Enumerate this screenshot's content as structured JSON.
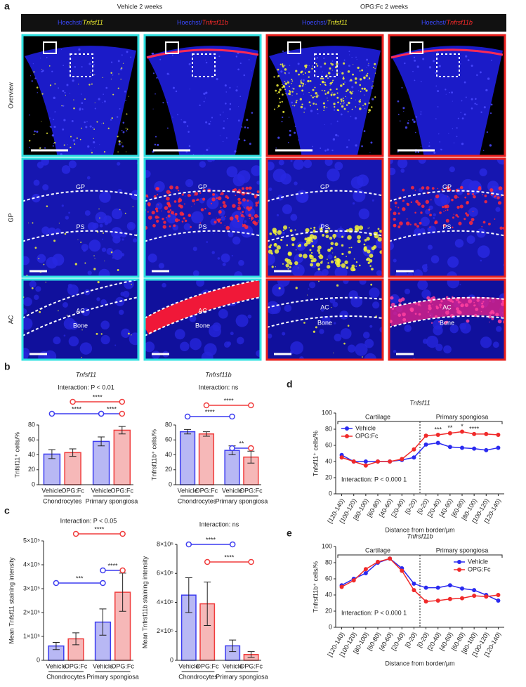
{
  "panel_labels": [
    "a",
    "b",
    "c",
    "d",
    "e"
  ],
  "panel_a": {
    "conditions": [
      "Vehicle 2 weeks",
      "OPG:Fc 2 weeks"
    ],
    "stains": [
      {
        "dye": "Hoechst/",
        "gene": "Tnfsf11"
      },
      {
        "dye": "Hoechst/",
        "gene": "Tnfrsf11b"
      },
      {
        "dye": "Hoechst/",
        "gene": "Tnfsf11"
      },
      {
        "dye": "Hoechst/",
        "gene": "Tnfrsf11b"
      }
    ],
    "rows": [
      "Overview",
      "GP",
      "AC"
    ],
    "gp_labels": [
      "GP",
      "PS"
    ],
    "ac_labels": [
      "AC",
      "Bone"
    ]
  },
  "chart_data": [
    {
      "type": "bar",
      "title": "Tnfsf11",
      "annotation": "Interaction: P < 0.01",
      "y_label": "Tnfsf11⁺ cells/%",
      "categories": [
        "Vehicle",
        "OPG:Fc",
        "Vehicle",
        "OPG:Fc"
      ],
      "groups": [
        "Chondrocytes",
        "Primary spongiosa"
      ],
      "values": [
        41,
        43,
        58,
        73
      ],
      "errors": [
        6,
        5,
        6,
        5
      ],
      "colors": [
        "#3c3cf0",
        "#f03c3c",
        "#3c3cf0",
        "#f03c3c"
      ],
      "fill_colors": [
        "#b8b8f4",
        "#f6b8b8",
        "#b8b8f4",
        "#f6b8b8"
      ],
      "ylim": [
        0,
        80
      ],
      "yticks": [
        0,
        20,
        40,
        60,
        80
      ],
      "comparisons": [
        {
          "from": 1,
          "to": 3,
          "label": "****",
          "colors": [
            "#f03c3c",
            "#f03c3c"
          ]
        },
        {
          "from": 0,
          "to": 2,
          "label": "****",
          "colors": [
            "#3c3cf0",
            "#3c3cf0"
          ]
        },
        {
          "from": 2,
          "to": 3,
          "label": "****",
          "colors": [
            "#3c3cf0",
            "#f03c3c"
          ]
        }
      ]
    },
    {
      "type": "bar",
      "title": "Tnfrsf11b",
      "annotation": "Interaction: ns",
      "y_label": "Tnfrsf11b⁺ cells/%",
      "categories": [
        "Vehicle",
        "OPG:Fc",
        "Vehicle",
        "OPG:Fc"
      ],
      "groups": [
        "Chondrocytes",
        "Primary spongiosa"
      ],
      "values": [
        71,
        68,
        46,
        37
      ],
      "errors": [
        3,
        3,
        6,
        8
      ],
      "colors": [
        "#3c3cf0",
        "#f03c3c",
        "#3c3cf0",
        "#f03c3c"
      ],
      "fill_colors": [
        "#b8b8f4",
        "#f6b8b8",
        "#b8b8f4",
        "#f6b8b8"
      ],
      "ylim": [
        0,
        80
      ],
      "yticks": [
        0,
        20,
        40,
        60,
        80
      ],
      "comparisons": [
        {
          "from": 1,
          "to": 3,
          "label": "****",
          "colors": [
            "#f03c3c",
            "#f03c3c"
          ]
        },
        {
          "from": 0,
          "to": 2,
          "label": "****",
          "colors": [
            "#3c3cf0",
            "#3c3cf0"
          ]
        },
        {
          "from": 2,
          "to": 3,
          "label": "**",
          "colors": [
            "#3c3cf0",
            "#f03c3c"
          ]
        }
      ]
    },
    {
      "type": "bar",
      "annotation": "Interaction: P < 0.05",
      "y_label": "Mean Tnfsf11 staining intensity",
      "categories": [
        "Vehicle",
        "OPG:Fc",
        "Vehicle",
        "OPG:Fc"
      ],
      "groups": [
        "Chondrocytes",
        "Primary spongiosa"
      ],
      "values": [
        60000,
        90000,
        160000,
        285000
      ],
      "errors": [
        15000,
        25000,
        55000,
        80000
      ],
      "colors": [
        "#3c3cf0",
        "#f03c3c",
        "#3c3cf0",
        "#f03c3c"
      ],
      "fill_colors": [
        "#b8b8f4",
        "#f6b8b8",
        "#b8b8f4",
        "#f6b8b8"
      ],
      "ylim": [
        0,
        500000
      ],
      "yticks": [
        0,
        {
          "value": 100000,
          "label": "1×10⁵"
        },
        {
          "value": 200000,
          "label": "2×10⁵"
        },
        {
          "value": 300000,
          "label": "3×10⁵"
        },
        {
          "value": 400000,
          "label": "4×10⁵"
        },
        {
          "value": 500000,
          "label": "5×10⁵"
        }
      ],
      "comparisons": [
        {
          "from": 1,
          "to": 3,
          "label": "****",
          "colors": [
            "#f03c3c",
            "#f03c3c"
          ]
        },
        {
          "from": 0,
          "to": 2,
          "label": "***",
          "colors": [
            "#3c3cf0",
            "#3c3cf0"
          ]
        },
        {
          "from": 2,
          "to": 3,
          "label": "****",
          "colors": [
            "#3c3cf0",
            "#f03c3c"
          ]
        }
      ]
    },
    {
      "type": "bar",
      "annotation": "Interaction: ns",
      "y_label": "Mean Tnfrsf11b staining intensity",
      "categories": [
        "Vehicle",
        "OPG:Fc",
        "Vehicle",
        "OPG:Fc"
      ],
      "groups": [
        "Chondrocytes",
        "Primary spongiosa"
      ],
      "values": [
        450000,
        390000,
        100000,
        40000
      ],
      "errors": [
        120000,
        150000,
        40000,
        20000
      ],
      "colors": [
        "#3c3cf0",
        "#f03c3c",
        "#3c3cf0",
        "#f03c3c"
      ],
      "fill_colors": [
        "#b8b8f4",
        "#f6b8b8",
        "#b8b8f4",
        "#f6b8b8"
      ],
      "ylim": [
        0,
        800000
      ],
      "yticks": [
        0,
        {
          "value": 200000,
          "label": "2×10⁵"
        },
        {
          "value": 400000,
          "label": "4×10⁵"
        },
        {
          "value": 600000,
          "label": "6×10⁵"
        },
        {
          "value": 800000,
          "label": "8×10⁵"
        }
      ],
      "comparisons": [
        {
          "from": 0,
          "to": 2,
          "label": "****",
          "colors": [
            "#3c3cf0",
            "#3c3cf0"
          ]
        },
        {
          "from": 1,
          "to": 3,
          "label": "****",
          "colors": [
            "#f03c3c",
            "#f03c3c"
          ]
        }
      ]
    },
    {
      "type": "line",
      "title": "Tnfsf11",
      "y_label": "Tnfsf11⁺ cells/%",
      "x_label": "Distance from border/μm",
      "categories": [
        "[120-140)",
        "[100-120)",
        "[80-100)",
        "[60-80)",
        "[40-60)",
        "[20-40)",
        "[0-20)",
        "[0-20)",
        "[20-40)",
        "[40-60)",
        "[60-80)",
        "[80-100)",
        "[100-120)",
        "[120-140)"
      ],
      "series": [
        {
          "name": "Vehicle",
          "color": "#2a2af0",
          "values": [
            48,
            40,
            40,
            40,
            40,
            42,
            45,
            61,
            63,
            58,
            57,
            56,
            54,
            57
          ]
        },
        {
          "name": "OPG:Fc",
          "color": "#f02a2a",
          "values": [
            45,
            40,
            35,
            40,
            40,
            43,
            55,
            72,
            73,
            75,
            77,
            74,
            74,
            73
          ]
        }
      ],
      "ylim": [
        0,
        100
      ],
      "yticks": [
        0,
        20,
        40,
        60,
        80,
        100
      ],
      "legend": "top-left",
      "regions": [
        "Cartilage",
        "Primary spongiosa"
      ],
      "annotation": "Interaction: P < 0.000 1",
      "significance": [
        {
          "index": 8,
          "label": "***"
        },
        {
          "index": 9,
          "label": "**"
        },
        {
          "index": 10,
          "label": "*"
        },
        {
          "index": 11,
          "label": "****"
        }
      ]
    },
    {
      "type": "line",
      "title": "Tnfrsf11b",
      "y_label": "Tnfrsf11b⁺ cells/%",
      "x_label": "Distance from border/μm",
      "categories": [
        "[120-140)",
        "[100-120)",
        "[80-100)",
        "[60-80)",
        "[40-60)",
        "[20-40)",
        "[0-20)",
        "[0-20)",
        "[20-40)",
        "[40-60)",
        "[60-80)",
        "[80-100)",
        "[100-120)",
        "[120-140)"
      ],
      "series": [
        {
          "name": "Vehicle",
          "color": "#2a2af0",
          "values": [
            52,
            60,
            67,
            80,
            85,
            73,
            54,
            49,
            49,
            52,
            48,
            46,
            40,
            33
          ]
        },
        {
          "name": "OPG:Fc",
          "color": "#f02a2a",
          "values": [
            50,
            58,
            72,
            81,
            85,
            70,
            46,
            32,
            33,
            35,
            36,
            39,
            38,
            40
          ]
        }
      ],
      "ylim": [
        0,
        100
      ],
      "yticks": [
        0,
        20,
        40,
        60,
        80,
        100
      ],
      "legend": "top-right",
      "regions": [
        "Cartilage",
        "Primary spongiosa"
      ],
      "annotation": "Interaction: P < 0.000 1"
    }
  ]
}
